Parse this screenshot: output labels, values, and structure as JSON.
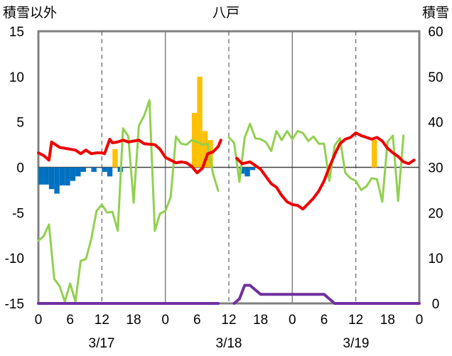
{
  "chart_data": {
    "type": "combo",
    "title": "八戸",
    "left_axis_label": "積雪以外",
    "right_axis_label": "積雪",
    "left_ylim": [
      -15,
      15
    ],
    "left_yticks": [
      15,
      10,
      5,
      0,
      -5,
      -10,
      -15
    ],
    "right_ylim": [
      0,
      60
    ],
    "right_yticks": [
      60,
      50,
      40,
      30,
      20,
      10,
      0
    ],
    "x_range_hours": [
      0,
      72
    ],
    "x_tick_labels": [
      "0",
      "6",
      "12",
      "18",
      "0",
      "6",
      "12",
      "18",
      "0",
      "6",
      "12",
      "18",
      "0"
    ],
    "date_labels": [
      "3/17",
      "3/18",
      "3/19"
    ],
    "colors": {
      "red": "#ee0000",
      "green": "#92d050",
      "purple": "#7030a0",
      "orange_bar": "#ffc000",
      "blue_bar": "#0070c0",
      "frame": "#808080",
      "zero_line": "#404040"
    },
    "series": [
      {
        "name": "red-line",
        "axis": "left",
        "points": [
          [
            0,
            1.6
          ],
          [
            1,
            1.3
          ],
          [
            2,
            0.8
          ],
          [
            2.5,
            2.8
          ],
          [
            4,
            2.2
          ],
          [
            6,
            2
          ],
          [
            7,
            1.9
          ],
          [
            8,
            1.5
          ],
          [
            9,
            1.9
          ],
          [
            10,
            1.5
          ],
          [
            11,
            1.6
          ],
          [
            12,
            1.6
          ],
          [
            12.5,
            1.5
          ],
          [
            13.5,
            3.1
          ],
          [
            14,
            2.7
          ],
          [
            15,
            2.8
          ],
          [
            16,
            3
          ],
          [
            17,
            2.8
          ],
          [
            18,
            2.9
          ],
          [
            19,
            3
          ],
          [
            20,
            2.6
          ],
          [
            22,
            2.5
          ],
          [
            23,
            2
          ],
          [
            24,
            1.1
          ],
          [
            25,
            0.8
          ],
          [
            26,
            0.5
          ],
          [
            27,
            0.6
          ],
          [
            28,
            0.5
          ],
          [
            29,
            0.1
          ],
          [
            30,
            -0.6
          ],
          [
            31,
            -0.1
          ],
          [
            32,
            1.5
          ],
          [
            33,
            1.7
          ],
          [
            34,
            2.3
          ],
          [
            34.5,
            3
          ]
        ],
        "segment2": [
          [
            37.5,
            1
          ],
          [
            38.5,
            0.4
          ],
          [
            40,
            0.6
          ],
          [
            41,
            0.2
          ],
          [
            42,
            -0.2
          ],
          [
            43,
            -1
          ],
          [
            44,
            -1.8
          ],
          [
            45,
            -2.2
          ],
          [
            46,
            -3.1
          ],
          [
            47,
            -3.8
          ],
          [
            48,
            -4.1
          ],
          [
            49,
            -4.2
          ],
          [
            50,
            -4.6
          ],
          [
            51,
            -4
          ],
          [
            52,
            -3.4
          ],
          [
            53,
            -2.6
          ],
          [
            54,
            -1.5
          ],
          [
            55,
            0
          ],
          [
            56,
            1.4
          ],
          [
            57,
            2.6
          ],
          [
            58,
            3.1
          ],
          [
            59,
            3.3
          ],
          [
            60,
            3.8
          ],
          [
            61,
            3.5
          ],
          [
            62,
            3.3
          ],
          [
            63,
            3.1
          ],
          [
            64,
            3.3
          ],
          [
            65,
            2.9
          ],
          [
            66,
            2.1
          ],
          [
            67,
            1.6
          ],
          [
            68,
            1.2
          ],
          [
            69,
            0.6
          ],
          [
            70,
            0.4
          ],
          [
            71,
            0.8
          ]
        ]
      },
      {
        "name": "green-line",
        "axis": "left",
        "points": [
          [
            0,
            -8.1
          ],
          [
            1,
            -7.6
          ],
          [
            2,
            -6.3
          ],
          [
            3,
            -12.3
          ],
          [
            4,
            -13.1
          ],
          [
            5,
            -14.8
          ],
          [
            6,
            -12.8
          ],
          [
            7,
            -14.8
          ],
          [
            8,
            -10.3
          ],
          [
            9,
            -10.1
          ],
          [
            10,
            -7.9
          ],
          [
            11,
            -4.8
          ],
          [
            12,
            -4.1
          ],
          [
            13,
            -5
          ],
          [
            14,
            -4.9
          ],
          [
            15,
            -7
          ],
          [
            16,
            4.3
          ],
          [
            17,
            3.4
          ],
          [
            18,
            -3.9
          ],
          [
            19,
            4.6
          ],
          [
            20,
            5.7
          ],
          [
            21,
            7.4
          ],
          [
            22,
            -7
          ],
          [
            23,
            -5.1
          ],
          [
            24,
            -4.8
          ],
          [
            25,
            -3.3
          ],
          [
            26,
            3.4
          ],
          [
            27,
            2.6
          ],
          [
            28,
            2.5
          ],
          [
            29,
            3
          ],
          [
            30,
            2.8
          ],
          [
            31,
            2.5
          ],
          [
            32,
            2.6
          ],
          [
            33,
            -0.7
          ],
          [
            34,
            -2.6
          ]
        ],
        "segment2": [
          [
            36,
            3.3
          ],
          [
            37,
            2.7
          ],
          [
            38,
            -1.6
          ],
          [
            39,
            3.3
          ],
          [
            40,
            4.8
          ],
          [
            41,
            3.2
          ],
          [
            42,
            3.1
          ],
          [
            43,
            2.8
          ],
          [
            44,
            1.8
          ],
          [
            45,
            4
          ],
          [
            46,
            3
          ],
          [
            47,
            4
          ],
          [
            48,
            3.1
          ],
          [
            49,
            4
          ],
          [
            50,
            3.8
          ],
          [
            51,
            2.9
          ],
          [
            52,
            3.4
          ],
          [
            53,
            2.6
          ],
          [
            54,
            2.6
          ],
          [
            55,
            -1.5
          ],
          [
            56,
            2.4
          ],
          [
            57,
            3.2
          ],
          [
            58,
            -0.6
          ],
          [
            59,
            -1.2
          ],
          [
            60,
            -1.5
          ],
          [
            61,
            -2.5
          ],
          [
            62,
            -2.1
          ],
          [
            63,
            -1.2
          ],
          [
            64,
            -1.3
          ],
          [
            65,
            -3.8
          ],
          [
            66,
            2.8
          ],
          [
            67,
            3.5
          ],
          [
            68,
            -3.7
          ],
          [
            69,
            3.5
          ]
        ]
      },
      {
        "name": "purple-line-snow-depth",
        "axis": "right",
        "points": [
          [
            0,
            0
          ],
          [
            34,
            0
          ]
        ],
        "segment2": [
          [
            37,
            0
          ],
          [
            38,
            1
          ],
          [
            39,
            4
          ],
          [
            40,
            4
          ],
          [
            41,
            3
          ],
          [
            42,
            2
          ],
          [
            54,
            2
          ],
          [
            55,
            1
          ],
          [
            56,
            0
          ],
          [
            72,
            0
          ]
        ]
      }
    ],
    "bars_orange": {
      "axis": "left",
      "note": "precipitation-like values",
      "points": [
        [
          14,
          2
        ],
        [
          29,
          6
        ],
        [
          30,
          10
        ],
        [
          31,
          4
        ],
        [
          32,
          3
        ],
        [
          63,
          3
        ]
      ]
    },
    "bars_blue": {
      "axis": "left",
      "note": "negative values below zero",
      "points": [
        [
          0,
          -1.9
        ],
        [
          1,
          -1.9
        ],
        [
          2,
          -2.4
        ],
        [
          3,
          -2.9
        ],
        [
          4,
          -2
        ],
        [
          5,
          -2
        ],
        [
          6,
          -1.5
        ],
        [
          7,
          -1
        ],
        [
          8,
          -0.5
        ],
        [
          10,
          -0.5
        ],
        [
          12,
          -0.5
        ],
        [
          13,
          -1
        ],
        [
          15,
          -0.5
        ],
        [
          38,
          -0.7
        ],
        [
          39,
          -1
        ],
        [
          40,
          -0.3
        ]
      ]
    }
  }
}
